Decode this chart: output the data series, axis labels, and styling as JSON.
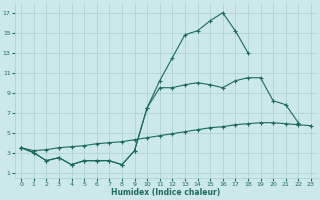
{
  "xlabel": "Humidex (Indice chaleur)",
  "bg_color": "#cce8e8",
  "grid_color": "#aacfcf",
  "line_color": "#1a6b5a",
  "xlim": [
    -0.5,
    23.5
  ],
  "ylim": [
    0.5,
    18
  ],
  "xticks": [
    0,
    1,
    2,
    3,
    4,
    5,
    6,
    7,
    8,
    9,
    10,
    11,
    12,
    13,
    14,
    15,
    16,
    17,
    18,
    19,
    20,
    21,
    22,
    23
  ],
  "yticks": [
    1,
    3,
    5,
    7,
    9,
    11,
    13,
    15,
    17
  ],
  "line1_x": [
    0,
    1,
    2,
    3,
    4,
    5,
    6,
    7,
    8,
    9,
    10,
    11,
    12,
    13,
    14,
    15,
    16,
    17,
    18
  ],
  "line1_y": [
    3.5,
    3.0,
    2.2,
    2.5,
    1.8,
    2.2,
    2.2,
    2.2,
    1.8,
    3.2,
    7.5,
    10.2,
    12.5,
    14.8,
    15.2,
    16.2,
    17.0,
    15.2,
    13.0
  ],
  "line2_x": [
    0,
    1,
    2,
    3,
    4,
    5,
    6,
    7,
    8,
    9,
    10,
    11,
    12,
    13,
    14,
    15,
    16,
    17,
    18,
    19,
    20,
    21,
    22,
    23
  ],
  "line2_y": [
    3.5,
    3.0,
    2.2,
    2.5,
    1.8,
    2.2,
    2.2,
    2.2,
    1.8,
    3.2,
    7.5,
    9.5,
    9.5,
    9.8,
    10.0,
    9.8,
    9.5,
    10.2,
    10.5,
    10.5,
    8.2,
    7.8,
    6.0,
    null
  ],
  "line3_x": [
    0,
    1,
    2,
    3,
    4,
    5,
    6,
    7,
    8,
    9,
    10,
    11,
    12,
    13,
    14,
    15,
    16,
    17,
    18,
    19,
    20,
    21,
    22,
    23
  ],
  "line3_y": [
    3.5,
    3.2,
    3.3,
    3.5,
    3.6,
    3.7,
    3.9,
    4.0,
    4.1,
    4.3,
    4.5,
    4.7,
    4.9,
    5.1,
    5.3,
    5.5,
    5.6,
    5.8,
    5.9,
    6.0,
    6.0,
    5.9,
    5.8,
    5.7
  ]
}
